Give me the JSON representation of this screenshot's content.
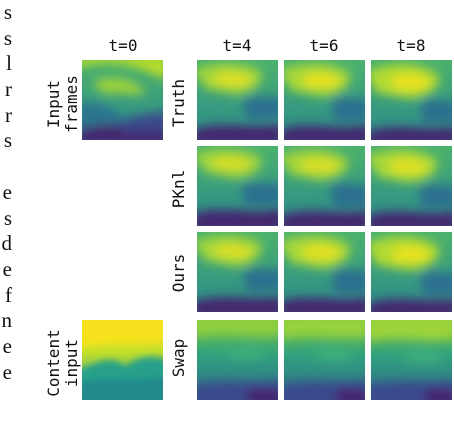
{
  "body_text_fragments": [
    "s",
    "s",
    "l",
    "r",
    "r",
    "s",
    "",
    "e",
    "s",
    "d",
    "e",
    "f",
    "n",
    "e",
    "e"
  ],
  "columns": [
    "t=0",
    "t=4",
    "t=6",
    "t=8"
  ],
  "rows": {
    "input": "Input\nframes",
    "truth": "Truth",
    "pknl": "PKnl",
    "ours": "Ours",
    "content": "Content\ninput",
    "swap": "Swap"
  },
  "colors": {
    "dark_purple": "#46226f",
    "indigo": "#3a4a8c",
    "teal": "#2a8a8c",
    "sea_green": "#2fae7a",
    "green": "#6bc04a",
    "lime": "#b7dc2a",
    "yellow": "#f2e21f"
  }
}
